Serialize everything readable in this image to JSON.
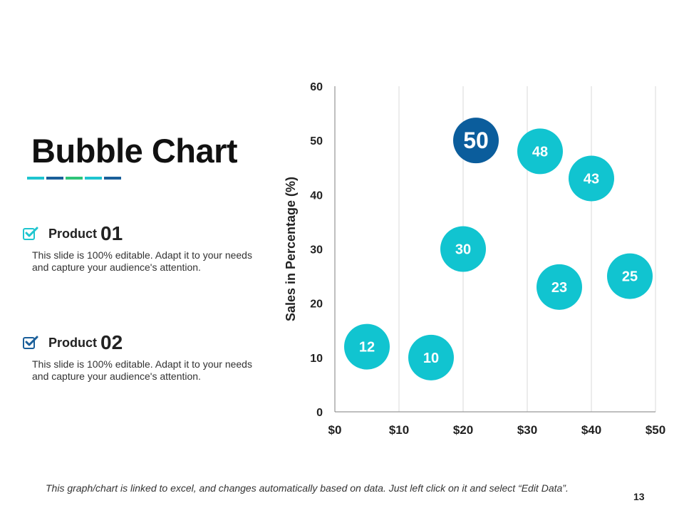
{
  "slide": {
    "title": "Bubble Chart",
    "title_bar_colors": [
      "#1ec5cf",
      "#1a5f9a",
      "#2ec478",
      "#1ec5cf",
      "#1a5f9a"
    ],
    "footer": "This graph/chart is linked to excel, and changes automatically based on data. Just left click on it and select “Edit Data”.",
    "page_number": "13"
  },
  "products": [
    {
      "label": "Product",
      "number": "01",
      "description": "This slide is 100% editable. Adapt it to your needs and capture your audience's attention.",
      "icon": "checkbox-checked-icon",
      "icon_color": "#1ec5cf"
    },
    {
      "label": "Product",
      "number": "02",
      "description": "This slide is 100% editable. Adapt it to your needs and capture your audience's attention.",
      "icon": "checkbox-checked-icon",
      "icon_color": "#1a5f9a"
    }
  ],
  "chart_data": {
    "type": "scatter",
    "subtype": "bubble",
    "title": "",
    "xlabel": "",
    "ylabel": "Sales in Percentage (%)",
    "xlim": [
      0,
      50
    ],
    "ylim": [
      0,
      60
    ],
    "x_ticks": [
      "$0",
      "$10",
      "$20",
      "$30",
      "$40",
      "$50"
    ],
    "y_ticks": [
      "0",
      "10",
      "20",
      "30",
      "40",
      "50",
      "60"
    ],
    "grid": {
      "vertical": true,
      "horizontal": false
    },
    "legend": "none",
    "colors": {
      "primary": "#11c4d0",
      "highlight": "#0b5d9c",
      "grid": "#d9d9d9",
      "axis": "#7f7f7f"
    },
    "points": [
      {
        "x": 5,
        "y": 12,
        "label": "12",
        "highlight": false
      },
      {
        "x": 15,
        "y": 10,
        "label": "10",
        "highlight": false
      },
      {
        "x": 20,
        "y": 30,
        "label": "30",
        "highlight": false
      },
      {
        "x": 22,
        "y": 50,
        "label": "50",
        "highlight": true
      },
      {
        "x": 32,
        "y": 48,
        "label": "48",
        "highlight": false
      },
      {
        "x": 35,
        "y": 23,
        "label": "23",
        "highlight": false
      },
      {
        "x": 40,
        "y": 43,
        "label": "43",
        "highlight": false
      },
      {
        "x": 46,
        "y": 25,
        "label": "25",
        "highlight": false
      }
    ]
  }
}
